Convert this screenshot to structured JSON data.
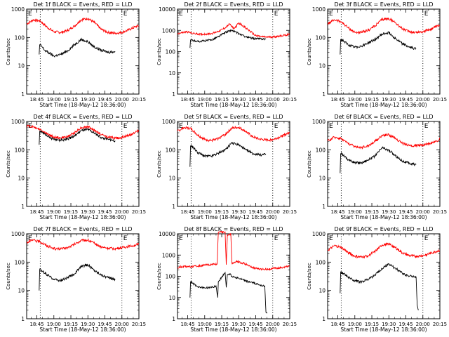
{
  "chart_data": [
    {
      "type": "line",
      "title": "Det 1f BLACK = Events, RED = LLD",
      "xlabel": "Start Time (18-May-12 18:36:00)",
      "ylabel": "Counts/sec",
      "xtick_labels": [
        "18:45",
        "19:00",
        "19:15",
        "19:30",
        "19:45",
        "20:00",
        "20:15"
      ],
      "ytick_labels": [
        "1",
        "10",
        "100",
        "1000"
      ],
      "ylim": [
        1,
        1000
      ],
      "yscale": "log",
      "xlim_min": [
        0,
        99
      ],
      "vlines_min": [
        12,
        84
      ],
      "markers": [
        "E",
        "E"
      ],
      "marker_min": [
        0,
        84
      ],
      "series": [
        {
          "color": "#ff0000",
          "x_min": [
            0,
            6,
            12,
            18,
            24,
            30,
            36,
            42,
            48,
            54,
            60,
            66,
            72,
            78,
            84,
            90,
            96,
            99
          ],
          "values": [
            300,
            420,
            380,
            230,
            160,
            150,
            175,
            250,
            420,
            470,
            330,
            190,
            150,
            140,
            150,
            185,
            240,
            260
          ]
        },
        {
          "color": "#000000",
          "x_min": [
            11,
            11.5,
            13,
            16,
            20,
            24,
            30,
            36,
            42,
            48,
            54,
            60,
            66,
            72,
            78
          ],
          "values": [
            25,
            55,
            50,
            35,
            28,
            22,
            25,
            33,
            55,
            85,
            70,
            45,
            35,
            30,
            32
          ]
        }
      ]
    },
    {
      "type": "line",
      "title": "Det 2f BLACK = Events, RED = LLD",
      "xlabel": "Start Time (18-May-12 18:36:00)",
      "ylabel": "Counts/sec",
      "xtick_labels": [
        "18:45",
        "19:00",
        "19:15",
        "19:30",
        "19:45",
        "20:00",
        "20:15"
      ],
      "ytick_labels": [
        "1",
        "10",
        "100",
        "1000",
        "10000"
      ],
      "ylim": [
        1,
        10000
      ],
      "yscale": "log",
      "xlim_min": [
        0,
        99
      ],
      "vlines_min": [
        12,
        84
      ],
      "markers": [
        "E",
        "E"
      ],
      "marker_min": [
        0,
        84
      ],
      "series": [
        {
          "color": "#ff0000",
          "x_min": [
            0,
            8,
            15,
            22,
            30,
            36,
            42,
            46,
            50,
            54,
            58,
            62,
            68,
            74,
            80,
            86,
            92,
            99
          ],
          "values": [
            700,
            850,
            700,
            650,
            700,
            900,
            1300,
            2000,
            1200,
            2200,
            1600,
            1100,
            600,
            500,
            480,
            500,
            560,
            650
          ]
        },
        {
          "color": "#000000",
          "x_min": [
            11,
            11.5,
            14,
            18,
            24,
            30,
            36,
            42,
            48,
            54,
            60,
            66,
            72,
            78
          ],
          "values": [
            150,
            350,
            330,
            300,
            320,
            360,
            500,
            800,
            1000,
            700,
            500,
            420,
            400,
            390
          ]
        }
      ]
    },
    {
      "type": "line",
      "title": "Det 3f BLACK = Events, RED = LLD",
      "xlabel": "Start Time (18-May-12 18:36:00)",
      "ylabel": "Counts/sec",
      "xtick_labels": [
        "18:45",
        "19:00",
        "19:15",
        "19:30",
        "19:45",
        "20:00",
        "20:15"
      ],
      "ytick_labels": [
        "1",
        "10",
        "100",
        "1000"
      ],
      "ylim": [
        1,
        1000
      ],
      "yscale": "log",
      "xlim_min": [
        0,
        99
      ],
      "vlines_min": [
        12,
        84
      ],
      "markers": [
        "E",
        "E"
      ],
      "marker_min": [
        0,
        84
      ],
      "series": [
        {
          "color": "#ff0000",
          "x_min": [
            0,
            6,
            12,
            18,
            24,
            30,
            36,
            42,
            48,
            54,
            60,
            66,
            72,
            78,
            84,
            90,
            96,
            99
          ],
          "values": [
            300,
            420,
            360,
            220,
            150,
            150,
            180,
            260,
            430,
            460,
            330,
            200,
            160,
            150,
            160,
            190,
            240,
            260
          ]
        },
        {
          "color": "#000000",
          "x_min": [
            11,
            11.5,
            14,
            18,
            24,
            30,
            36,
            42,
            48,
            54,
            60,
            66,
            72,
            78
          ],
          "values": [
            25,
            85,
            75,
            55,
            45,
            50,
            65,
            85,
            130,
            150,
            90,
            60,
            45,
            40
          ]
        }
      ]
    },
    {
      "type": "line",
      "title": "Det 4f BLACK = Events, RED = LLD",
      "xlabel": "Start Time (18-May-12 18:36:00)",
      "ylabel": "Counts/sec",
      "xtick_labels": [
        "18:45",
        "19:00",
        "19:15",
        "19:30",
        "19:45",
        "20:00",
        "20:15"
      ],
      "ytick_labels": [
        "1",
        "10",
        "100",
        "1000"
      ],
      "ylim": [
        1,
        1000
      ],
      "yscale": "log",
      "xlim_min": [
        0,
        99
      ],
      "vlines_min": [
        12,
        84
      ],
      "markers": [
        "E",
        "E"
      ],
      "marker_min": [
        0,
        84
      ],
      "series": [
        {
          "color": "#ff0000",
          "x_min": [
            0,
            6,
            12,
            18,
            24,
            30,
            36,
            42,
            48,
            54,
            60,
            66,
            72,
            78,
            84,
            90,
            96,
            99
          ],
          "values": [
            700,
            650,
            520,
            360,
            280,
            260,
            290,
            400,
            600,
            650,
            480,
            340,
            280,
            260,
            270,
            320,
            420,
            480
          ]
        },
        {
          "color": "#000000",
          "x_min": [
            11,
            11.5,
            14,
            18,
            24,
            30,
            36,
            42,
            48,
            54,
            60,
            66,
            72,
            78
          ],
          "values": [
            150,
            450,
            420,
            300,
            230,
            220,
            240,
            300,
            480,
            520,
            380,
            270,
            230,
            210
          ]
        }
      ]
    },
    {
      "type": "line",
      "title": "Det 5f BLACK = Events, RED = LLD",
      "xlabel": "Start Time (18-May-12 18:36:00)",
      "ylabel": "Counts/sec",
      "xtick_labels": [
        "18:45",
        "19:00",
        "19:15",
        "19:30",
        "19:45",
        "20:00",
        "20:15"
      ],
      "ytick_labels": [
        "1",
        "10",
        "100",
        "1000"
      ],
      "ylim": [
        1,
        1000
      ],
      "yscale": "log",
      "xlim_min": [
        0,
        99
      ],
      "vlines_min": [
        12,
        84
      ],
      "markers": [
        "E",
        "E"
      ],
      "marker_min": [
        0,
        84
      ],
      "series": [
        {
          "color": "#ff0000",
          "x_min": [
            0,
            6,
            12,
            18,
            24,
            30,
            36,
            42,
            48,
            54,
            60,
            66,
            72,
            78,
            84,
            90,
            96,
            99
          ],
          "values": [
            450,
            620,
            550,
            330,
            230,
            210,
            250,
            350,
            580,
            620,
            450,
            290,
            240,
            220,
            230,
            280,
            360,
            400
          ]
        },
        {
          "color": "#000000",
          "x_min": [
            11,
            11.5,
            14,
            18,
            24,
            30,
            36,
            42,
            48,
            54,
            60,
            66,
            72,
            78
          ],
          "values": [
            25,
            140,
            120,
            80,
            60,
            60,
            75,
            100,
            170,
            150,
            100,
            75,
            65,
            70
          ]
        }
      ]
    },
    {
      "type": "line",
      "title": "Det 6f BLACK = Events, RED = LLD",
      "xlabel": "Start Time (18-May-12 18:36:00)",
      "ylabel": "Counts/sec",
      "xtick_labels": [
        "18:45",
        "19:00",
        "19:15",
        "19:30",
        "19:45",
        "20:00",
        "20:15"
      ],
      "ytick_labels": [
        "1",
        "10",
        "100",
        "1000"
      ],
      "ylim": [
        1,
        1000
      ],
      "yscale": "log",
      "xlim_min": [
        0,
        99
      ],
      "vlines_min": [
        12,
        84
      ],
      "markers": [
        "E",
        "E"
      ],
      "marker_min": [
        0,
        84
      ],
      "series": [
        {
          "color": "#ff0000",
          "x_min": [
            0,
            6,
            12,
            18,
            24,
            30,
            36,
            42,
            48,
            54,
            60,
            66,
            72,
            78,
            84,
            90,
            96,
            99
          ],
          "values": [
            200,
            280,
            250,
            170,
            130,
            120,
            140,
            200,
            320,
            340,
            250,
            170,
            140,
            140,
            150,
            170,
            200,
            240
          ]
        },
        {
          "color": "#000000",
          "x_min": [
            11,
            11.5,
            14,
            18,
            24,
            30,
            36,
            42,
            48,
            54,
            60,
            66,
            72,
            78
          ],
          "values": [
            15,
            75,
            65,
            45,
            35,
            35,
            45,
            60,
            120,
            95,
            60,
            40,
            33,
            30
          ]
        }
      ]
    },
    {
      "type": "line",
      "title": "Det 7f BLACK = Events, RED = LLD",
      "xlabel": "Start Time (18-May-12 18:36:00)",
      "ylabel": "Counts/sec",
      "xtick_labels": [
        "18:45",
        "19:00",
        "19:15",
        "19:30",
        "19:45",
        "20:00",
        "20:15"
      ],
      "ytick_labels": [
        "1",
        "10",
        "100",
        "1000"
      ],
      "ylim": [
        1,
        1000
      ],
      "yscale": "log",
      "xlim_min": [
        0,
        99
      ],
      "vlines_min": [
        12,
        84
      ],
      "markers": [
        "E",
        "E"
      ],
      "marker_min": [
        0,
        84
      ],
      "series": [
        {
          "color": "#ff0000",
          "x_min": [
            0,
            6,
            12,
            18,
            24,
            30,
            36,
            42,
            48,
            54,
            60,
            66,
            72,
            78,
            84,
            90,
            96,
            99
          ],
          "values": [
            500,
            600,
            520,
            380,
            300,
            290,
            320,
            420,
            580,
            600,
            450,
            340,
            310,
            300,
            320,
            360,
            400,
            420
          ]
        },
        {
          "color": "#000000",
          "x_min": [
            11,
            11.5,
            14,
            18,
            24,
            30,
            36,
            42,
            48,
            54,
            60,
            66,
            72,
            78
          ],
          "values": [
            10,
            55,
            48,
            35,
            25,
            22,
            28,
            38,
            70,
            80,
            50,
            35,
            28,
            25
          ]
        }
      ]
    },
    {
      "type": "line",
      "title": "Det 8f BLACK = Events, RED = LLD",
      "xlabel": "Start Time (18-May-12 18:36:00)",
      "ylabel": "Counts/sec",
      "xtick_labels": [
        "18:45",
        "19:00",
        "19:15",
        "19:30",
        "19:45",
        "20:00",
        "20:15"
      ],
      "ytick_labels": [
        "1",
        "10",
        "100",
        "1000",
        "10000"
      ],
      "ylim": [
        1,
        10000
      ],
      "yscale": "log",
      "xlim_min": [
        0,
        99
      ],
      "vlines_min": [
        12,
        84
      ],
      "markers": [
        "E",
        "E"
      ],
      "marker_min": [
        0,
        84
      ],
      "series": [
        {
          "color": "#ff0000",
          "x_min": [
            0,
            6,
            12,
            18,
            24,
            30,
            35,
            36,
            37,
            42,
            43,
            44,
            46,
            47,
            48,
            52,
            60,
            66,
            72,
            78,
            84,
            90,
            96,
            99
          ],
          "values": [
            250,
            300,
            280,
            300,
            330,
            360,
            380,
            12000,
            12000,
            12000,
            350,
            9000,
            9000,
            10000,
            400,
            500,
            380,
            260,
            220,
            210,
            230,
            250,
            280,
            300
          ]
        },
        {
          "color": "#000000",
          "x_min": [
            11,
            11.5,
            14,
            18,
            24,
            30,
            34,
            35.5,
            36,
            42,
            43,
            44,
            46,
            48,
            54,
            60,
            66,
            72,
            77,
            78,
            79
          ],
          "values": [
            10,
            55,
            45,
            32,
            28,
            30,
            35,
            10,
            55,
            150,
            30,
            120,
            130,
            100,
            80,
            60,
            50,
            40,
            35,
            2,
            2
          ]
        }
      ]
    },
    {
      "type": "line",
      "title": "Det 9f BLACK = Events, RED = LLD",
      "xlabel": "Start Time (18-May-12 18:36:00)",
      "ylabel": "Counts/sec",
      "xtick_labels": [
        "18:45",
        "19:00",
        "19:15",
        "19:30",
        "19:45",
        "20:00",
        "20:15"
      ],
      "ytick_labels": [
        "1",
        "10",
        "100",
        "1000"
      ],
      "ylim": [
        1,
        1000
      ],
      "yscale": "log",
      "xlim_min": [
        0,
        99
      ],
      "vlines_min": [
        12,
        84
      ],
      "markers": [
        "E",
        "E"
      ],
      "marker_min": [
        0,
        84
      ],
      "series": [
        {
          "color": "#ff0000",
          "x_min": [
            0,
            6,
            12,
            18,
            24,
            30,
            36,
            42,
            48,
            54,
            60,
            66,
            72,
            78,
            84,
            90,
            96,
            99
          ],
          "values": [
            260,
            380,
            330,
            220,
            160,
            150,
            170,
            240,
            400,
            440,
            320,
            210,
            170,
            160,
            170,
            200,
            240,
            260
          ]
        },
        {
          "color": "#000000",
          "x_min": [
            11,
            11.5,
            14,
            18,
            24,
            30,
            36,
            42,
            48,
            54,
            60,
            66,
            72,
            78,
            79,
            80
          ],
          "values": [
            8,
            45,
            40,
            30,
            22,
            20,
            25,
            35,
            60,
            85,
            60,
            40,
            32,
            30,
            3,
            2
          ]
        }
      ]
    }
  ]
}
